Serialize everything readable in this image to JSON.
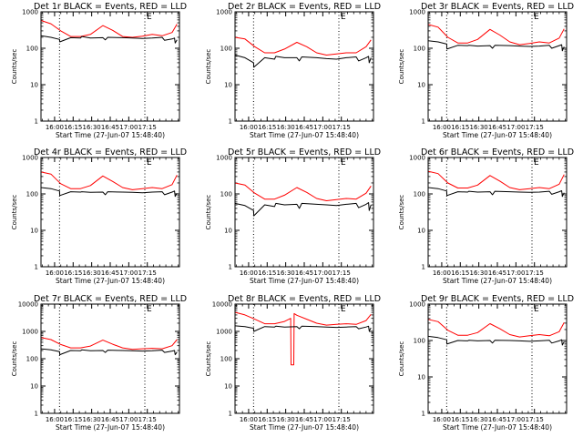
{
  "chart_data": [
    {
      "type": "line",
      "title": "Det 1r BLACK = Events, RED = LLD",
      "xlabel": "Start Time (27-Jun-07 15:48:40)",
      "ylabel": "Counts/sec",
      "yscale": "log",
      "ylim": [
        1,
        1000
      ],
      "ytick_labels": [
        "1",
        "10",
        "100",
        "1000"
      ],
      "xtick_labels": [
        "16:00",
        "16:15",
        "16:30",
        "16:45",
        "17:00",
        "17:15"
      ],
      "markers": [
        {
          "x_min": 15,
          "label": ""
        },
        {
          "x_min": 84,
          "label": "E"
        }
      ],
      "series": [
        {
          "name": "RED",
          "color": "#ff0000",
          "x": [
            0,
            8,
            16,
            24,
            32,
            40,
            50,
            58,
            66,
            74,
            82,
            90,
            98,
            106,
            110
          ],
          "y": [
            580,
            470,
            300,
            210,
            210,
            240,
            420,
            310,
            210,
            200,
            215,
            240,
            220,
            270,
            460
          ]
        },
        {
          "name": "BLACK",
          "color": "#000000",
          "x": [
            0,
            8,
            15,
            15.2,
            24,
            32,
            33,
            40,
            50,
            52,
            54,
            66,
            74,
            82,
            90,
            98,
            100,
            106,
            108,
            108.5,
            110
          ],
          "y": [
            220,
            200,
            175,
            150,
            195,
            190,
            210,
            190,
            195,
            170,
            200,
            195,
            190,
            185,
            190,
            200,
            165,
            180,
            190,
            140,
            170
          ]
        }
      ]
    },
    {
      "type": "line",
      "title": "Det 2r BLACK = Events, RED = LLD",
      "xlabel": "Start Time (27-Jun-07 15:48:40)",
      "ylabel": "Counts/sec",
      "yscale": "log",
      "ylim": [
        1,
        1000
      ],
      "ytick_labels": [
        "1",
        "10",
        "100",
        "1000"
      ],
      "xtick_labels": [
        "16:00",
        "16:15",
        "16:30",
        "16:45",
        "17:00",
        "17:15"
      ],
      "markers": [
        {
          "x_min": 15,
          "label": ""
        },
        {
          "x_min": 84,
          "label": "E"
        }
      ],
      "series": [
        {
          "name": "RED",
          "color": "#ff0000",
          "x": [
            0,
            8,
            16,
            24,
            32,
            40,
            50,
            58,
            66,
            74,
            82,
            90,
            98,
            106,
            110
          ],
          "y": [
            200,
            180,
            110,
            75,
            75,
            95,
            145,
            110,
            75,
            65,
            70,
            75,
            75,
            110,
            170
          ]
        },
        {
          "name": "BLACK",
          "color": "#000000",
          "x": [
            0,
            8,
            15,
            15.2,
            24,
            32,
            33,
            40,
            50,
            52,
            54,
            66,
            74,
            82,
            90,
            98,
            100,
            106,
            108,
            108.5,
            110
          ],
          "y": [
            65,
            55,
            40,
            30,
            55,
            50,
            60,
            55,
            55,
            45,
            58,
            55,
            52,
            50,
            55,
            58,
            45,
            55,
            60,
            40,
            55
          ]
        }
      ]
    },
    {
      "type": "line",
      "title": "Det 3r BLACK = Events, RED = LLD",
      "xlabel": "Start Time (27-Jun-07 15:48:40)",
      "ylabel": "Counts/sec",
      "yscale": "log",
      "ylim": [
        1,
        1000
      ],
      "ytick_labels": [
        "1",
        "10",
        "100",
        "1000"
      ],
      "xtick_labels": [
        "16:00",
        "16:15",
        "16:30",
        "16:45",
        "17:00",
        "17:15"
      ],
      "markers": [
        {
          "x_min": 15,
          "label": ""
        },
        {
          "x_min": 84,
          "label": "E"
        }
      ],
      "series": [
        {
          "name": "RED",
          "color": "#ff0000",
          "x": [
            0,
            8,
            16,
            24,
            32,
            40,
            50,
            58,
            66,
            74,
            82,
            90,
            98,
            106,
            110
          ],
          "y": [
            450,
            380,
            200,
            140,
            140,
            175,
            330,
            230,
            150,
            125,
            135,
            150,
            140,
            190,
            340
          ]
        },
        {
          "name": "BLACK",
          "color": "#000000",
          "x": [
            0,
            8,
            15,
            15.2,
            24,
            32,
            33,
            40,
            50,
            52,
            54,
            66,
            74,
            82,
            90,
            98,
            100,
            106,
            108,
            108.5,
            110
          ],
          "y": [
            160,
            150,
            130,
            95,
            120,
            118,
            120,
            115,
            118,
            100,
            120,
            118,
            115,
            112,
            115,
            120,
            100,
            118,
            125,
            85,
            110
          ]
        }
      ]
    },
    {
      "type": "line",
      "title": "Det 4r BLACK = Events, RED = LLD",
      "xlabel": "Start Time (27-Jun-07 15:48:40)",
      "ylabel": "Counts/sec",
      "yscale": "log",
      "ylim": [
        1,
        1000
      ],
      "ytick_labels": [
        "1",
        "10",
        "100",
        "1000"
      ],
      "xtick_labels": [
        "16:00",
        "16:15",
        "16:30",
        "16:45",
        "17:00",
        "17:15"
      ],
      "markers": [
        {
          "x_min": 15,
          "label": ""
        },
        {
          "x_min": 84,
          "label": "E"
        }
      ],
      "series": [
        {
          "name": "RED",
          "color": "#ff0000",
          "x": [
            0,
            8,
            16,
            24,
            32,
            40,
            50,
            58,
            66,
            74,
            82,
            90,
            98,
            106,
            110
          ],
          "y": [
            400,
            350,
            190,
            140,
            140,
            170,
            310,
            220,
            150,
            130,
            140,
            150,
            140,
            180,
            330
          ]
        },
        {
          "name": "BLACK",
          "color": "#000000",
          "x": [
            0,
            8,
            15,
            15.2,
            24,
            32,
            33,
            40,
            50,
            52,
            54,
            66,
            74,
            82,
            90,
            98,
            100,
            106,
            108,
            108.5,
            110
          ],
          "y": [
            150,
            140,
            120,
            90,
            115,
            112,
            115,
            110,
            112,
            95,
            115,
            112,
            110,
            108,
            112,
            115,
            95,
            112,
            120,
            85,
            105
          ]
        }
      ]
    },
    {
      "type": "line",
      "title": "Det 5r BLACK = Events, RED = LLD",
      "xlabel": "Start Time (27-Jun-07 15:48:40)",
      "ylabel": "Counts/sec",
      "yscale": "log",
      "ylim": [
        1,
        1000
      ],
      "ytick_labels": [
        "1",
        "10",
        "100",
        "1000"
      ],
      "xtick_labels": [
        "16:00",
        "16:15",
        "16:30",
        "16:45",
        "17:00",
        "17:15"
      ],
      "markers": [
        {
          "x_min": 15,
          "label": ""
        },
        {
          "x_min": 84,
          "label": "E"
        }
      ],
      "series": [
        {
          "name": "RED",
          "color": "#ff0000",
          "x": [
            0,
            8,
            16,
            24,
            32,
            40,
            50,
            58,
            66,
            74,
            82,
            90,
            98,
            106,
            110
          ],
          "y": [
            200,
            175,
            105,
            72,
            72,
            92,
            150,
            110,
            75,
            65,
            70,
            75,
            72,
            105,
            165
          ]
        },
        {
          "name": "BLACK",
          "color": "#000000",
          "x": [
            0,
            8,
            15,
            15.2,
            24,
            32,
            33,
            40,
            50,
            52,
            54,
            66,
            74,
            82,
            90,
            98,
            100,
            106,
            108,
            108.5,
            110
          ],
          "y": [
            55,
            48,
            35,
            25,
            50,
            45,
            55,
            50,
            52,
            40,
            55,
            52,
            50,
            48,
            52,
            55,
            42,
            52,
            58,
            35,
            50
          ]
        }
      ]
    },
    {
      "type": "line",
      "title": "Det 6r BLACK = Events, RED = LLD",
      "xlabel": "Start Time (27-Jun-07 15:48:40)",
      "ylabel": "Counts/sec",
      "yscale": "log",
      "ylim": [
        1,
        1000
      ],
      "ytick_labels": [
        "1",
        "10",
        "100",
        "1000"
      ],
      "xtick_labels": [
        "16:00",
        "16:15",
        "16:30",
        "16:45",
        "17:00",
        "17:15"
      ],
      "markers": [
        {
          "x_min": 15,
          "label": ""
        },
        {
          "x_min": 84,
          "label": "E"
        }
      ],
      "series": [
        {
          "name": "RED",
          "color": "#ff0000",
          "x": [
            0,
            8,
            16,
            24,
            32,
            40,
            50,
            58,
            66,
            74,
            82,
            90,
            98,
            106,
            110
          ],
          "y": [
            420,
            360,
            200,
            145,
            145,
            175,
            320,
            225,
            150,
            130,
            140,
            150,
            140,
            185,
            340
          ]
        },
        {
          "name": "BLACK",
          "color": "#000000",
          "x": [
            0,
            8,
            15,
            15.2,
            24,
            32,
            33,
            40,
            50,
            52,
            54,
            66,
            74,
            82,
            90,
            98,
            100,
            106,
            108,
            108.5,
            110
          ],
          "y": [
            150,
            140,
            120,
            90,
            115,
            112,
            118,
            112,
            115,
            95,
            118,
            115,
            112,
            110,
            112,
            118,
            98,
            115,
            122,
            85,
            108
          ]
        }
      ]
    },
    {
      "type": "line",
      "title": "Det 7r BLACK = Events, RED = LLD",
      "xlabel": "Start Time (27-Jun-07 15:48:40)",
      "ylabel": "Counts/sec",
      "yscale": "log",
      "ylim": [
        1,
        10000
      ],
      "ytick_labels": [
        "1",
        "10",
        "100",
        "1000",
        "10000"
      ],
      "xtick_labels": [
        "16:00",
        "16:15",
        "16:30",
        "16:45",
        "17:00",
        "17:15"
      ],
      "markers": [
        {
          "x_min": 15,
          "label": ""
        },
        {
          "x_min": 84,
          "label": "E"
        }
      ],
      "series": [
        {
          "name": "RED",
          "color": "#ff0000",
          "x": [
            0,
            8,
            16,
            24,
            32,
            40,
            50,
            58,
            66,
            74,
            82,
            90,
            98,
            106,
            110
          ],
          "y": [
            600,
            500,
            330,
            250,
            250,
            290,
            480,
            340,
            250,
            220,
            230,
            240,
            230,
            300,
            500
          ]
        },
        {
          "name": "BLACK",
          "color": "#000000",
          "x": [
            0,
            8,
            15,
            15.2,
            24,
            32,
            33,
            40,
            50,
            52,
            54,
            66,
            74,
            82,
            90,
            98,
            100,
            106,
            108,
            108.5,
            110
          ],
          "y": [
            230,
            210,
            180,
            140,
            200,
            195,
            210,
            195,
            200,
            170,
            205,
            200,
            195,
            190,
            195,
            205,
            170,
            190,
            200,
            140,
            175
          ]
        }
      ]
    },
    {
      "type": "line",
      "title": "Det 8r BLACK = Events, RED = LLD",
      "xlabel": "Start Time (27-Jun-07 15:48:40)",
      "ylabel": "Counts/sec",
      "yscale": "log",
      "ylim": [
        1,
        10000
      ],
      "ytick_labels": [
        "1",
        "10",
        "100",
        "1000",
        "10000"
      ],
      "xtick_labels": [
        "16:00",
        "16:15",
        "16:30",
        "16:45",
        "17:00",
        "17:15"
      ],
      "markers": [
        {
          "x_min": 15,
          "label": ""
        },
        {
          "x_min": 84,
          "label": "E"
        }
      ],
      "series": [
        {
          "name": "RED",
          "color": "#ff0000",
          "x": [
            0,
            8,
            16,
            24,
            32,
            40,
            45,
            45.3,
            47.5,
            47.8,
            50,
            58,
            66,
            74,
            82,
            90,
            98,
            106,
            110
          ],
          "y": [
            5000,
            4000,
            2800,
            1900,
            1900,
            2300,
            3000,
            60,
            60,
            4500,
            3900,
            2800,
            2000,
            1700,
            1800,
            1900,
            1800,
            2500,
            4200
          ]
        },
        {
          "name": "BLACK",
          "color": "#000000",
          "x": [
            0,
            8,
            15,
            15.2,
            24,
            32,
            33,
            40,
            50,
            52,
            54,
            66,
            74,
            82,
            90,
            98,
            100,
            106,
            108,
            108.5,
            110
          ],
          "y": [
            1600,
            1500,
            1300,
            1000,
            1500,
            1450,
            1550,
            1450,
            1500,
            1250,
            1550,
            1500,
            1450,
            1400,
            1450,
            1500,
            1250,
            1450,
            1550,
            1050,
            1350
          ]
        }
      ]
    },
    {
      "type": "line",
      "title": "Det 9r BLACK = Events, RED = LLD",
      "xlabel": "Start Time (27-Jun-07 15:48:40)",
      "ylabel": "Counts/sec",
      "yscale": "log",
      "ylim": [
        1,
        1000
      ],
      "ytick_labels": [
        "1",
        "10",
        "100",
        "1000"
      ],
      "xtick_labels": [
        "16:00",
        "16:15",
        "16:30",
        "16:45",
        "17:00",
        "17:15"
      ],
      "markers": [
        {
          "x_min": 15,
          "label": ""
        },
        {
          "x_min": 84,
          "label": "E"
        }
      ],
      "series": [
        {
          "name": "RED",
          "color": "#ff0000",
          "x": [
            0,
            8,
            16,
            24,
            32,
            40,
            50,
            58,
            66,
            74,
            82,
            90,
            98,
            106,
            110
          ],
          "y": [
            380,
            330,
            190,
            140,
            140,
            165,
            290,
            210,
            145,
            125,
            135,
            145,
            135,
            175,
            310
          ]
        },
        {
          "name": "BLACK",
          "color": "#000000",
          "x": [
            0,
            8,
            15,
            15.2,
            24,
            32,
            33,
            40,
            50,
            52,
            54,
            66,
            74,
            82,
            90,
            98,
            100,
            106,
            108,
            108.5,
            110
          ],
          "y": [
            130,
            120,
            105,
            80,
            100,
            98,
            102,
            98,
            100,
            85,
            102,
            100,
            98,
            95,
            98,
            102,
            85,
            98,
            105,
            75,
            92
          ]
        }
      ]
    }
  ]
}
